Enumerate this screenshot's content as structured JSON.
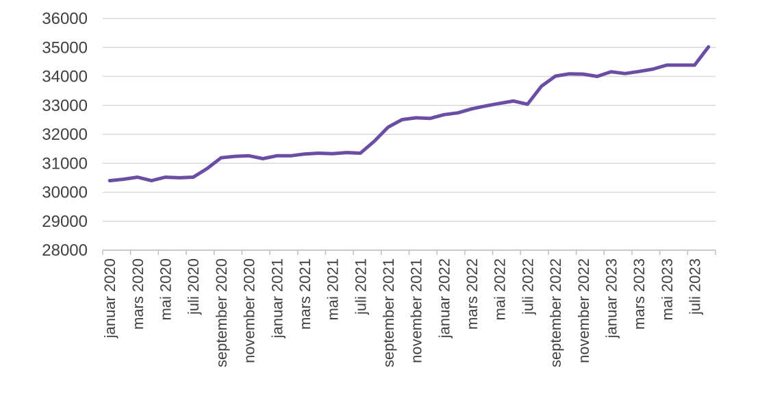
{
  "chart_data": {
    "type": "line",
    "title": "",
    "xlabel": "",
    "ylabel": "",
    "ylim": [
      28000,
      36000
    ],
    "yticks": [
      "28000",
      "29000",
      "30000",
      "31000",
      "32000",
      "33000",
      "34000",
      "35000",
      "36000"
    ],
    "grid": true,
    "x": [
      "2020-01",
      "2020-02",
      "2020-03",
      "2020-04",
      "2020-05",
      "2020-06",
      "2020-07",
      "2020-08",
      "2020-09",
      "2020-10",
      "2020-11",
      "2020-12",
      "2021-01",
      "2021-02",
      "2021-03",
      "2021-04",
      "2021-05",
      "2021-06",
      "2021-07",
      "2021-08",
      "2021-09",
      "2021-10",
      "2021-11",
      "2021-12",
      "2022-01",
      "2022-02",
      "2022-03",
      "2022-04",
      "2022-05",
      "2022-06",
      "2022-07",
      "2022-08",
      "2022-09",
      "2022-10",
      "2022-11",
      "2022-12",
      "2023-01",
      "2023-02",
      "2023-03",
      "2023-04",
      "2023-05",
      "2023-06",
      "2023-07",
      "2023-08"
    ],
    "xtick_labels": [
      {
        "index": 0,
        "label": "januar 2020"
      },
      {
        "index": 2,
        "label": "mars 2020"
      },
      {
        "index": 4,
        "label": "mai 2020"
      },
      {
        "index": 6,
        "label": "juli 2020"
      },
      {
        "index": 8,
        "label": "september 2020"
      },
      {
        "index": 10,
        "label": "november 2020"
      },
      {
        "index": 12,
        "label": "januar 2021"
      },
      {
        "index": 14,
        "label": "mars 2021"
      },
      {
        "index": 16,
        "label": "mai 2021"
      },
      {
        "index": 18,
        "label": "juli 2021"
      },
      {
        "index": 20,
        "label": "september 2021"
      },
      {
        "index": 22,
        "label": "november 2021"
      },
      {
        "index": 24,
        "label": "januar 2022"
      },
      {
        "index": 26,
        "label": "mars 2022"
      },
      {
        "index": 28,
        "label": "mai 2022"
      },
      {
        "index": 30,
        "label": "juli 2022"
      },
      {
        "index": 32,
        "label": "september 2022"
      },
      {
        "index": 34,
        "label": "november 2022"
      },
      {
        "index": 36,
        "label": "januar 2023"
      },
      {
        "index": 38,
        "label": "mars 2023"
      },
      {
        "index": 40,
        "label": "mai 2023"
      },
      {
        "index": 42,
        "label": "juli 2023"
      }
    ],
    "series": [
      {
        "color": "#6a4ea4",
        "values": [
          30400,
          30450,
          30520,
          30400,
          30520,
          30500,
          30520,
          30820,
          31190,
          31240,
          31260,
          31160,
          31260,
          31260,
          31320,
          31350,
          31330,
          31370,
          31350,
          31760,
          32250,
          32510,
          32570,
          32550,
          32680,
          32740,
          32880,
          32980,
          33070,
          33150,
          33040,
          33660,
          34010,
          34090,
          34080,
          34000,
          34160,
          34100,
          34170,
          34250,
          34390,
          34390,
          34390,
          35020
        ]
      }
    ]
  }
}
